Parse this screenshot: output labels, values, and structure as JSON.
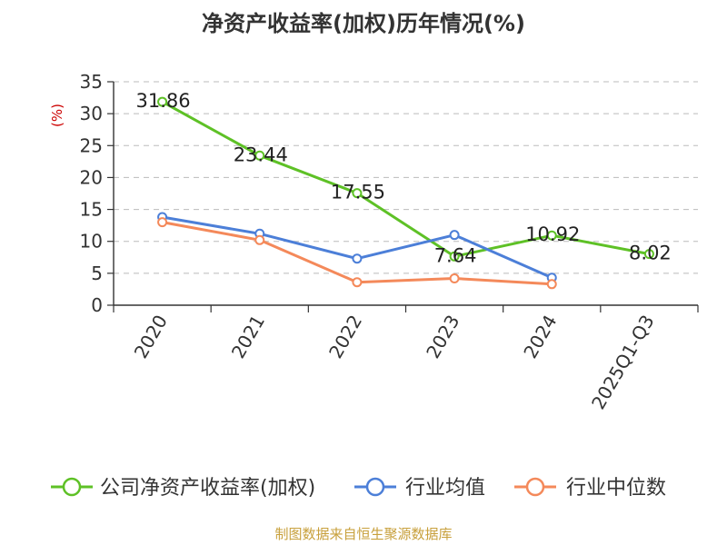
{
  "chart_data": {
    "type": "line",
    "title": "净资产收益率(加权)历年情况(%)",
    "ylabel": "(%)",
    "categories": [
      "2020",
      "2021",
      "2022",
      "2023",
      "2024",
      "2025Q1-Q3"
    ],
    "ylim": [
      0,
      35
    ],
    "yticks": [
      0,
      5,
      10,
      15,
      20,
      25,
      30,
      35
    ],
    "grid": true,
    "legend_position": "bottom",
    "series": [
      {
        "name": "公司净资产收益率(加权)",
        "color": "#5ec126",
        "values": [
          31.86,
          23.44,
          17.55,
          7.64,
          10.92,
          8.02
        ],
        "labels": [
          "31.86",
          "23.44",
          "17.55",
          "7.64",
          "10.92",
          "8.02"
        ]
      },
      {
        "name": "行业均值",
        "color": "#4c7fd8",
        "values": [
          13.8,
          11.2,
          7.3,
          11.0,
          4.3,
          null
        ]
      },
      {
        "name": "行业中位数",
        "color": "#f4895a",
        "values": [
          13.0,
          10.2,
          3.6,
          4.2,
          3.3,
          null
        ]
      }
    ]
  },
  "source": "制图数据来自恒生聚源数据库",
  "colors": {
    "unit": "#cc0000",
    "source": "#c8a03c",
    "axis": "#333333",
    "grid": "#bbbbbb"
  }
}
